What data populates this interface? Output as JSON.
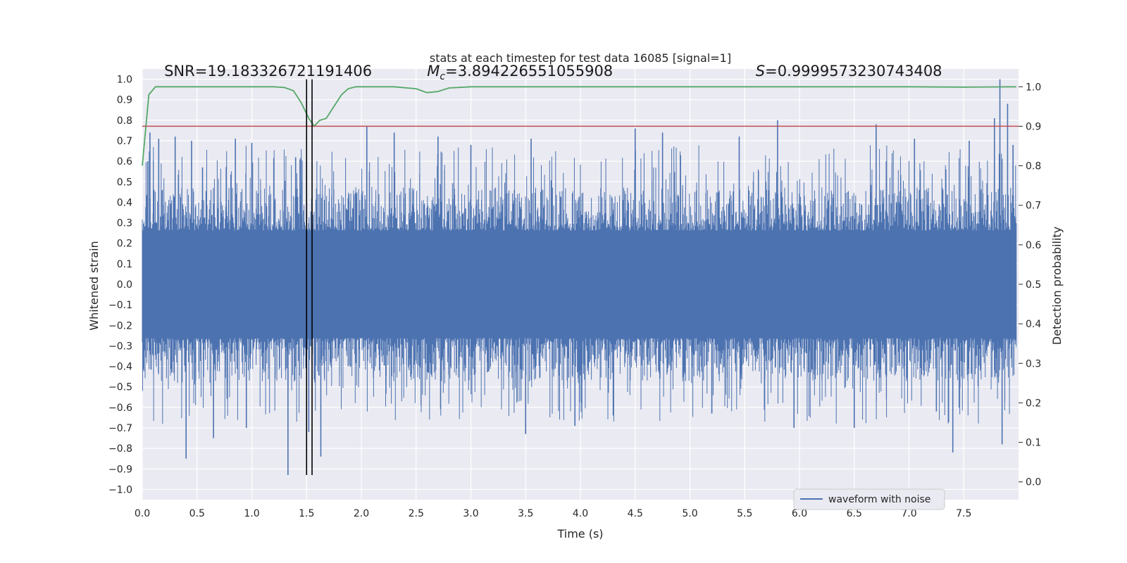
{
  "chart_data": {
    "type": "line",
    "title": "stats at each timestep for test data 16085 [signal=1]",
    "xlabel": "Time (s)",
    "ylabel_left": "Whitened strain",
    "ylabel_right": "Detection probability",
    "xlim": [
      0.0,
      8.0
    ],
    "ylim_left": [
      -1.05,
      1.05
    ],
    "ylim_right": [
      -0.045,
      1.045
    ],
    "x_ticks": [
      0.0,
      0.5,
      1.0,
      1.5,
      2.0,
      2.5,
      3.0,
      3.5,
      4.0,
      4.5,
      5.0,
      5.5,
      6.0,
      6.5,
      7.0,
      7.5
    ],
    "x_tick_labels": [
      "0.0",
      "0.5",
      "1.0",
      "1.5",
      "2.0",
      "2.5",
      "3.0",
      "3.5",
      "4.0",
      "4.5",
      "5.0",
      "5.5",
      "6.0",
      "6.5",
      "7.0",
      "7.5"
    ],
    "y_left_ticks": [
      1.0,
      0.9,
      0.8,
      0.7,
      0.6,
      0.5,
      0.4,
      0.3,
      0.2,
      0.1,
      0.0,
      -0.1,
      -0.2,
      -0.3,
      -0.4,
      -0.5,
      -0.6,
      -0.7,
      -0.8,
      -0.9,
      -1.0
    ],
    "y_left_tick_labels": [
      "1.0",
      "0.9",
      "0.8",
      "0.7",
      "0.6",
      "0.5",
      "0.4",
      "0.3",
      "0.2",
      "0.1",
      "0.0",
      "−0.1",
      "−0.2",
      "−0.3",
      "−0.4",
      "−0.5",
      "−0.6",
      "−0.7",
      "−0.8",
      "−0.9",
      "−1.0"
    ],
    "y_right_ticks": [
      1.0,
      0.9,
      0.8,
      0.7,
      0.6,
      0.5,
      0.4,
      0.3,
      0.2,
      0.1,
      0.0
    ],
    "y_right_tick_labels": [
      "1.0",
      "0.9",
      "0.8",
      "0.7",
      "0.6",
      "0.5",
      "0.4",
      "0.3",
      "0.2",
      "0.1",
      "0.0"
    ],
    "annotations": [
      {
        "name": "snr-annotation",
        "text": "SNR=19.183326721191406",
        "x": 0.2,
        "y": 1.015
      },
      {
        "name": "mc-annotation",
        "label": "M",
        "subscript": "c",
        "value": "=3.894226551055908",
        "x": 2.6,
        "y": 1.015
      },
      {
        "name": "s-annotation",
        "label": "S",
        "value": "=0.9999573230743408",
        "x": 5.6,
        "y": 1.015
      }
    ],
    "threshold": {
      "name": "threshold-line",
      "y_right": 0.9,
      "color": "#c44e52"
    },
    "event_markers": [
      1.5,
      1.55
    ],
    "event_marker_ymin": -0.93,
    "event_marker_ymax": 1.0,
    "series": [
      {
        "name": "waveform with noise",
        "axis": "left",
        "color": "#4c72b0",
        "kind": "noise",
        "core_amplitude": 0.23,
        "typical_amplitude": 0.35,
        "duration": 7.98,
        "spikes": [
          {
            "x": 0.05,
            "y": 0.6
          },
          {
            "x": 0.07,
            "y": 0.74
          },
          {
            "x": 0.15,
            "y": 0.71
          },
          {
            "x": 0.3,
            "y": 0.72
          },
          {
            "x": 0.4,
            "y": -0.85
          },
          {
            "x": 0.45,
            "y": 0.7
          },
          {
            "x": 0.55,
            "y": 0.57
          },
          {
            "x": 0.65,
            "y": -0.75
          },
          {
            "x": 0.85,
            "y": 0.71
          },
          {
            "x": 0.95,
            "y": -0.7
          },
          {
            "x": 1.0,
            "y": 0.69
          },
          {
            "x": 1.33,
            "y": -0.93
          },
          {
            "x": 1.4,
            "y": 0.62
          },
          {
            "x": 1.5,
            "y": 0.6
          },
          {
            "x": 1.52,
            "y": -0.72
          },
          {
            "x": 1.63,
            "y": -0.84
          },
          {
            "x": 2.05,
            "y": 0.77
          },
          {
            "x": 2.3,
            "y": 0.74
          },
          {
            "x": 2.7,
            "y": 0.72
          },
          {
            "x": 3.0,
            "y": 0.68
          },
          {
            "x": 3.5,
            "y": -0.73
          },
          {
            "x": 3.55,
            "y": 0.71
          },
          {
            "x": 3.95,
            "y": -0.69
          },
          {
            "x": 4.3,
            "y": -0.64
          },
          {
            "x": 4.5,
            "y": 0.76
          },
          {
            "x": 4.75,
            "y": 0.74
          },
          {
            "x": 5.2,
            "y": -0.63
          },
          {
            "x": 5.45,
            "y": 0.72
          },
          {
            "x": 5.8,
            "y": 0.8
          },
          {
            "x": 5.95,
            "y": -0.7
          },
          {
            "x": 6.5,
            "y": -0.7
          },
          {
            "x": 6.7,
            "y": 0.78
          },
          {
            "x": 7.05,
            "y": 0.71
          },
          {
            "x": 7.25,
            "y": -0.62
          },
          {
            "x": 7.4,
            "y": -0.82
          },
          {
            "x": 7.55,
            "y": 0.7
          },
          {
            "x": 7.78,
            "y": 0.81
          },
          {
            "x": 7.83,
            "y": 1.0
          },
          {
            "x": 7.85,
            "y": -0.78
          },
          {
            "x": 7.9,
            "y": 0.88
          },
          {
            "x": 7.95,
            "y": 0.68
          }
        ]
      },
      {
        "name": "detection probability",
        "axis": "right",
        "color": "#55a868",
        "x": [
          0.0,
          0.06,
          0.12,
          0.25,
          1.0,
          1.2,
          1.3,
          1.38,
          1.45,
          1.52,
          1.57,
          1.62,
          1.68,
          1.75,
          1.82,
          1.88,
          1.95,
          2.3,
          2.5,
          2.6,
          2.7,
          2.8,
          3.0,
          4.0,
          5.0,
          6.0,
          7.0,
          7.5,
          7.98
        ],
        "y": [
          0.8,
          0.98,
          1.0,
          1.0,
          1.0,
          1.0,
          0.998,
          0.99,
          0.96,
          0.92,
          0.9,
          0.915,
          0.92,
          0.95,
          0.98,
          0.995,
          1.0,
          1.0,
          0.995,
          0.985,
          0.988,
          0.997,
          1.0,
          1.0,
          1.0,
          1.0,
          1.0,
          0.999,
          1.0
        ]
      }
    ],
    "legend": {
      "position": "lower-right",
      "entries": [
        "waveform with noise"
      ]
    },
    "grid": true
  }
}
